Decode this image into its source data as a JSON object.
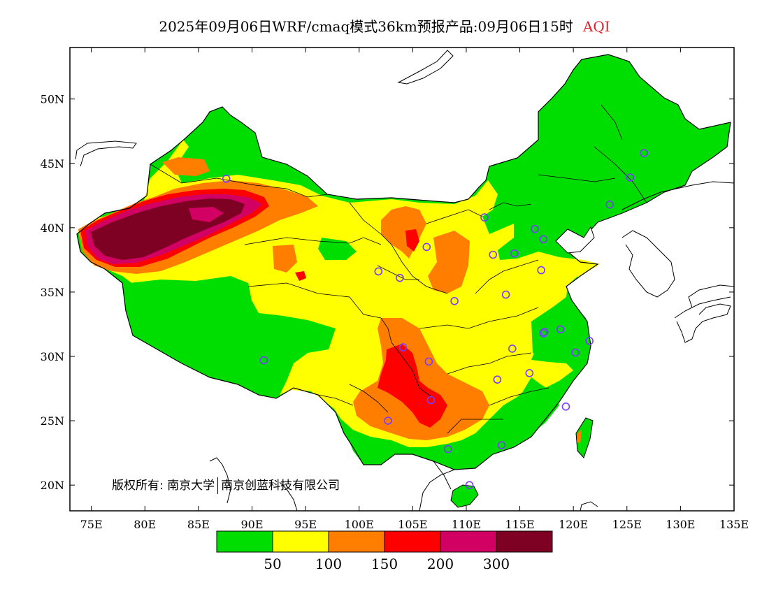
{
  "title": {
    "main": "2025年09月06日WRF/cmaq模式36km预报产品:09月06日15时",
    "variable": "AQI",
    "variable_color": "#e0202a"
  },
  "axes": {
    "lat_labels": [
      "50N",
      "45N",
      "40N",
      "35N",
      "30N",
      "25N",
      "20N"
    ],
    "lat_values": [
      50,
      45,
      40,
      35,
      30,
      25,
      20
    ],
    "lon_labels": [
      "75E",
      "80E",
      "85E",
      "90E",
      "95E",
      "100E",
      "105E",
      "110E",
      "115E",
      "120E",
      "125E",
      "130E",
      "135E"
    ],
    "lon_values": [
      75,
      80,
      85,
      90,
      95,
      100,
      105,
      110,
      115,
      120,
      125,
      130,
      135
    ],
    "lat_range": [
      18,
      54
    ],
    "lon_range": [
      73,
      135
    ]
  },
  "copyright": {
    "label": "版权所有:",
    "org1": "南京大学",
    "org2": "南京创蓝科技有限公司"
  },
  "legend": {
    "colors": [
      "#00dd00",
      "#ffff00",
      "#ff7e00",
      "#ff0000",
      "#d10062",
      "#7e0023"
    ],
    "labels": [
      "50",
      "100",
      "150",
      "200",
      "300"
    ]
  },
  "stations_note": "",
  "station_color": "#7a3cff"
}
